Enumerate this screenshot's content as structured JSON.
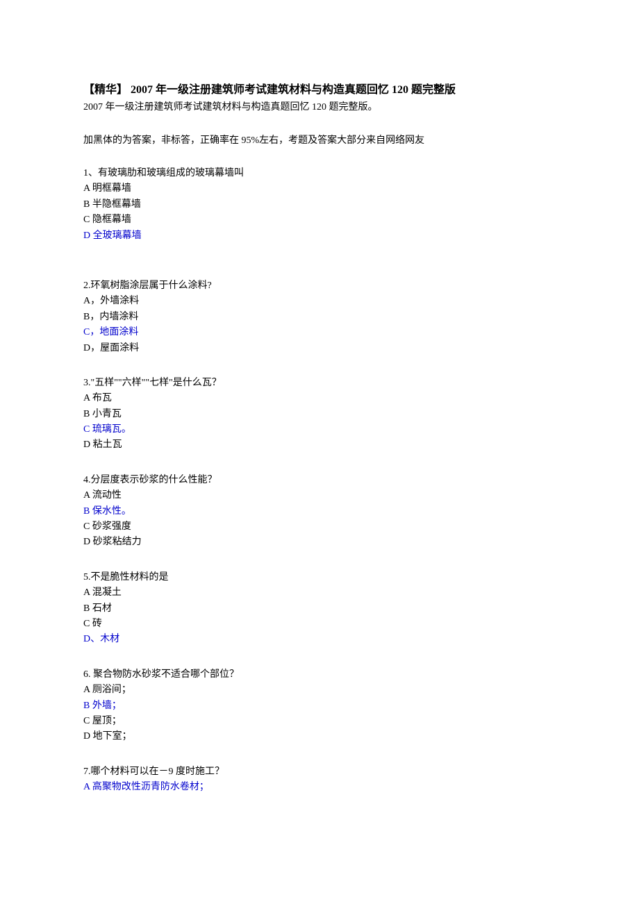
{
  "title": "【精华】 2007 年一级注册建筑师考试建筑材料与构造真题回忆 120 题完整版",
  "subtitle": "2007 年一级注册建筑师考试建筑材料与构造真题回忆 120 题完整版。",
  "note": "加黑体的为答案，非标答，正确率在 95%左右，考题及答案大部分来自网络网友",
  "questions": [
    {
      "text": "1、有玻璃肋和玻璃组成的玻璃幕墙叫",
      "options": [
        {
          "label": "A 明框幕墙",
          "answer": false
        },
        {
          "label": "B 半隐框幕墙",
          "answer": false
        },
        {
          "label": "C 隐框幕墙",
          "answer": false
        },
        {
          "label": "D 全玻璃幕墙",
          "answer": true
        }
      ],
      "extra_space": true
    },
    {
      "text": "2.环氧树脂涂层属于什么涂料?",
      "options": [
        {
          "label": "A，外墙涂料",
          "answer": false
        },
        {
          "label": "B，内墙涂料",
          "answer": false
        },
        {
          "label": "C，地面涂料",
          "answer": true
        },
        {
          "label": "D，屋面涂料",
          "answer": false
        }
      ]
    },
    {
      "text": "3.\"五样\"\"六样\"\"七样\"是什么瓦？",
      "options": [
        {
          "label": "A 布瓦",
          "answer": false
        },
        {
          "label": "B 小青瓦",
          "answer": false
        },
        {
          "label": "C 琉璃瓦。",
          "answer": true
        },
        {
          "label": "D 粘土瓦",
          "answer": false
        }
      ]
    },
    {
      "text": "4.分层度表示砂浆的什么性能？",
      "options": [
        {
          "label": "A 流动性",
          "answer": false
        },
        {
          "label": "B 保水性。",
          "answer": true
        },
        {
          "label": "C 砂浆强度",
          "answer": false
        },
        {
          "label": "D 砂浆粘结力",
          "answer": false
        }
      ]
    },
    {
      "text": "5.不是脆性材料的是",
      "options": [
        {
          "label": "A 混凝土",
          "answer": false
        },
        {
          "label": "B 石材",
          "answer": false
        },
        {
          "label": "C 砖",
          "answer": false
        },
        {
          "label": "D、木材",
          "answer": true
        }
      ]
    },
    {
      "text": "6. 聚合物防水砂浆不适合哪个部位？",
      "options": [
        {
          "label": "A 厕浴间；",
          "answer": false
        },
        {
          "label": "B 外墙；",
          "answer": true
        },
        {
          "label": "C 屋顶；",
          "answer": false
        },
        {
          "label": "D 地下室；",
          "answer": false
        }
      ]
    },
    {
      "text": "7.哪个材料可以在－9 度时施工？",
      "options": [
        {
          "label": "A 高聚物改性沥青防水卷材；",
          "answer": true
        }
      ]
    }
  ],
  "colors": {
    "text": "#000000",
    "answer": "#0000cc",
    "background": "#ffffff"
  },
  "typography": {
    "title_fontsize": 16,
    "body_fontsize": 14,
    "font_family": "SimSun"
  }
}
